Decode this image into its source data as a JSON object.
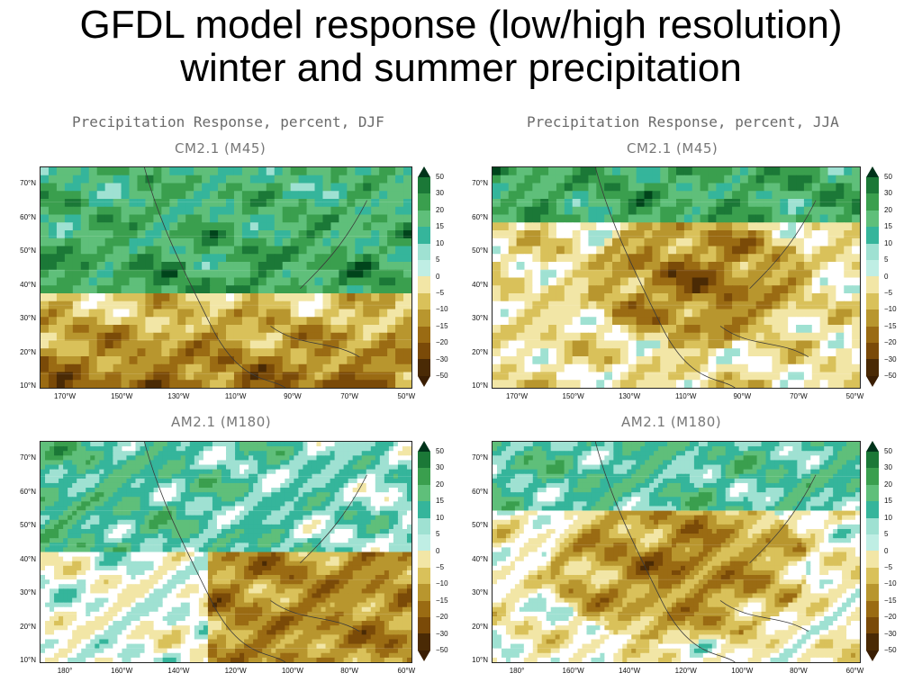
{
  "slide": {
    "title_line1": "GFDL model response (low/high resolution)",
    "title_line2": "winter and summer precipitation"
  },
  "columns": {
    "left_header": "Precipitation Response, percent, DJF",
    "right_header": "Precipitation Response, percent, JJA"
  },
  "panels": [
    {
      "title": "CM2.1 (M45)",
      "season": "DJF",
      "lat_labels": [
        "70°N",
        "60°N",
        "50°N",
        "40°N",
        "30°N",
        "20°N",
        "10°N"
      ],
      "lon_labels": [
        "170°W",
        "150°W",
        "130°W",
        "110°W",
        "90°W",
        "70°W",
        "50°W"
      ]
    },
    {
      "title": "CM2.1 (M45)",
      "season": "JJA",
      "lat_labels": [
        "70°N",
        "60°N",
        "50°N",
        "40°N",
        "30°N",
        "20°N",
        "10°N"
      ],
      "lon_labels": [
        "170°W",
        "150°W",
        "130°W",
        "110°W",
        "90°W",
        "70°W",
        "50°W"
      ]
    },
    {
      "title": "AM2.1 (M180)",
      "season": "DJF",
      "lat_labels": [
        "70°N",
        "60°N",
        "50°N",
        "40°N",
        "30°N",
        "20°N",
        "10°N"
      ],
      "lon_labels": [
        "180°",
        "160°W",
        "140°W",
        "120°W",
        "100°W",
        "80°W",
        "60°W"
      ]
    },
    {
      "title": "AM2.1 (M180)",
      "season": "JJA",
      "lat_labels": [
        "70°N",
        "60°N",
        "50°N",
        "40°N",
        "30°N",
        "20°N",
        "10°N"
      ],
      "lon_labels": [
        "180°",
        "160°W",
        "140°W",
        "120°W",
        "100°W",
        "80°W",
        "60°W"
      ]
    }
  ],
  "colorbar": {
    "labels": [
      "50",
      "30",
      "20",
      "15",
      "10",
      "5",
      "0",
      "−5",
      "−10",
      "−15",
      "−20",
      "−30",
      "−50"
    ],
    "colors": [
      "#00441b",
      "#1b7837",
      "#3a9f4e",
      "#5fbf7a",
      "#35b59b",
      "#9fe1d2",
      "#ffffff",
      "#f2e6a6",
      "#d9c15a",
      "#b8962e",
      "#9a6b13",
      "#7a4a08",
      "#4a2a05"
    ],
    "top_arrow_color": "#00331a",
    "bottom_arrow_color": "#3a1e03"
  }
}
